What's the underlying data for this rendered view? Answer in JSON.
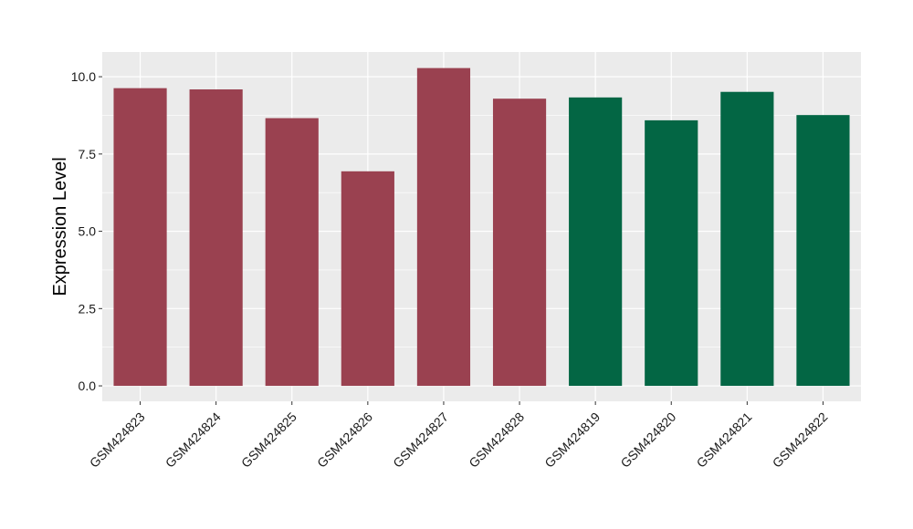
{
  "chart_data": {
    "type": "bar",
    "categories": [
      "GSM424823",
      "GSM424824",
      "GSM424825",
      "GSM424826",
      "GSM424827",
      "GSM424828",
      "GSM424819",
      "GSM424820",
      "GSM424821",
      "GSM424822"
    ],
    "values": [
      9.63,
      9.59,
      8.66,
      6.94,
      10.28,
      9.29,
      9.33,
      8.59,
      9.51,
      8.76
    ],
    "bar_colors": [
      "#9a4150",
      "#9a4150",
      "#9a4150",
      "#9a4150",
      "#9a4150",
      "#9a4150",
      "#036644",
      "#036644",
      "#036644",
      "#036644"
    ],
    "xlabel": "",
    "ylabel": "Expression Level",
    "ylim": [
      -0.5,
      10.8
    ],
    "yticks": [
      0.0,
      2.5,
      5.0,
      7.5,
      10.0
    ],
    "ytick_labels": [
      "0.0",
      "2.5",
      "5.0",
      "7.5",
      "10.0"
    ],
    "grid": true,
    "legend": "none",
    "panel_background": "#ebebeb",
    "grid_color": "#ffffff"
  }
}
